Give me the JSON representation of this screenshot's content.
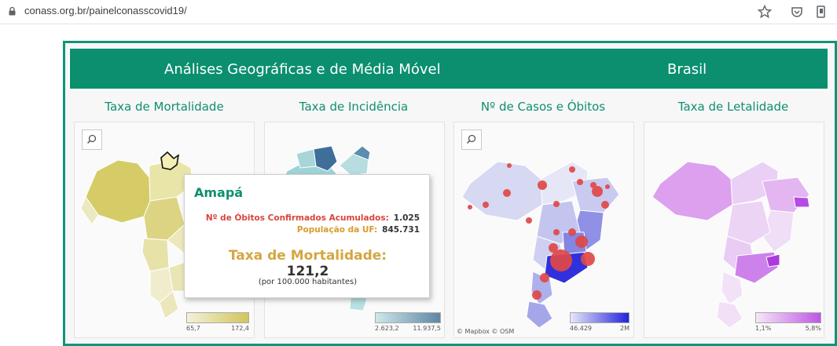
{
  "browser": {
    "url": "conass.org.br/painelconasscovid19/"
  },
  "header": {
    "title": "Análises Geográficas e de Média Móvel",
    "country": "Brasil"
  },
  "panels": [
    {
      "title": "Taxa de Mortalidade",
      "legend_min": "65,7",
      "legend_max": "172,4"
    },
    {
      "title": "Taxa de Incidência",
      "legend_min": "2.623,2",
      "legend_max": "11.937,5"
    },
    {
      "title": "Nº de Casos e Óbitos",
      "legend_min": "46.429",
      "legend_max": "2M"
    },
    {
      "title": "Taxa de Letalidade",
      "legend_min": "1,1%",
      "legend_max": "5,8%"
    }
  ],
  "attribution": "© Mapbox  © OSM",
  "tooltip": {
    "state": "Amapá",
    "deaths_label": "Nº de Óbitos Confirmados Acumulados:",
    "deaths_value": "1.025",
    "population_label": "População da UF:",
    "population_value": "845.731",
    "rate_label": "Taxa de Mortalidade:",
    "rate_value": "121,2",
    "rate_note": "(por 100.000 habitantes)"
  },
  "colors": {
    "brand_green": "#0b8f6f",
    "mortality_low": "#f3f1d8",
    "mortality_high": "#d2c55a",
    "incidence_low": "#cde8ea",
    "incidence_high": "#5d87a6",
    "cases_low": "#e7e8f7",
    "cases_high": "#2222dd",
    "lethality_low": "#f5e8f7",
    "lethality_high": "#c055e6",
    "bubble": "#e04848"
  }
}
